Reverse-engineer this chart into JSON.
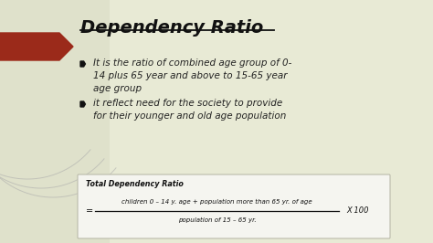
{
  "title": "Dependency Ratio",
  "bg_top": "#e8ead5",
  "bg_bottom": "#c8cbb0",
  "title_color": "#111111",
  "title_fontsize": 14,
  "bullet1_line1": "It is the ratio of combined age group of 0-",
  "bullet1_line2": "14 plus 65 year and above to 15-65 year",
  "bullet1_line3": "age group",
  "bullet2_line1": "it reflect need for the society to provide",
  "bullet2_line2": "for their younger and old age population",
  "formula_title": "Total Dependency Ratio",
  "formula_numerator": "children 0 – 14 y. age + population more than 65 yr. of age",
  "formula_denominator": "population of 15 – 65 yr.",
  "formula_suffix": "X 100",
  "formula_equals": "=",
  "arrow_color": "#9b2a1a",
  "bullet_color": "#111111",
  "text_color": "#222222",
  "formula_box_color": "#f5f5f0",
  "formula_box_edge": "#bbbbaa",
  "curve_color": "#aaaaaa",
  "underline_color": "#111111"
}
